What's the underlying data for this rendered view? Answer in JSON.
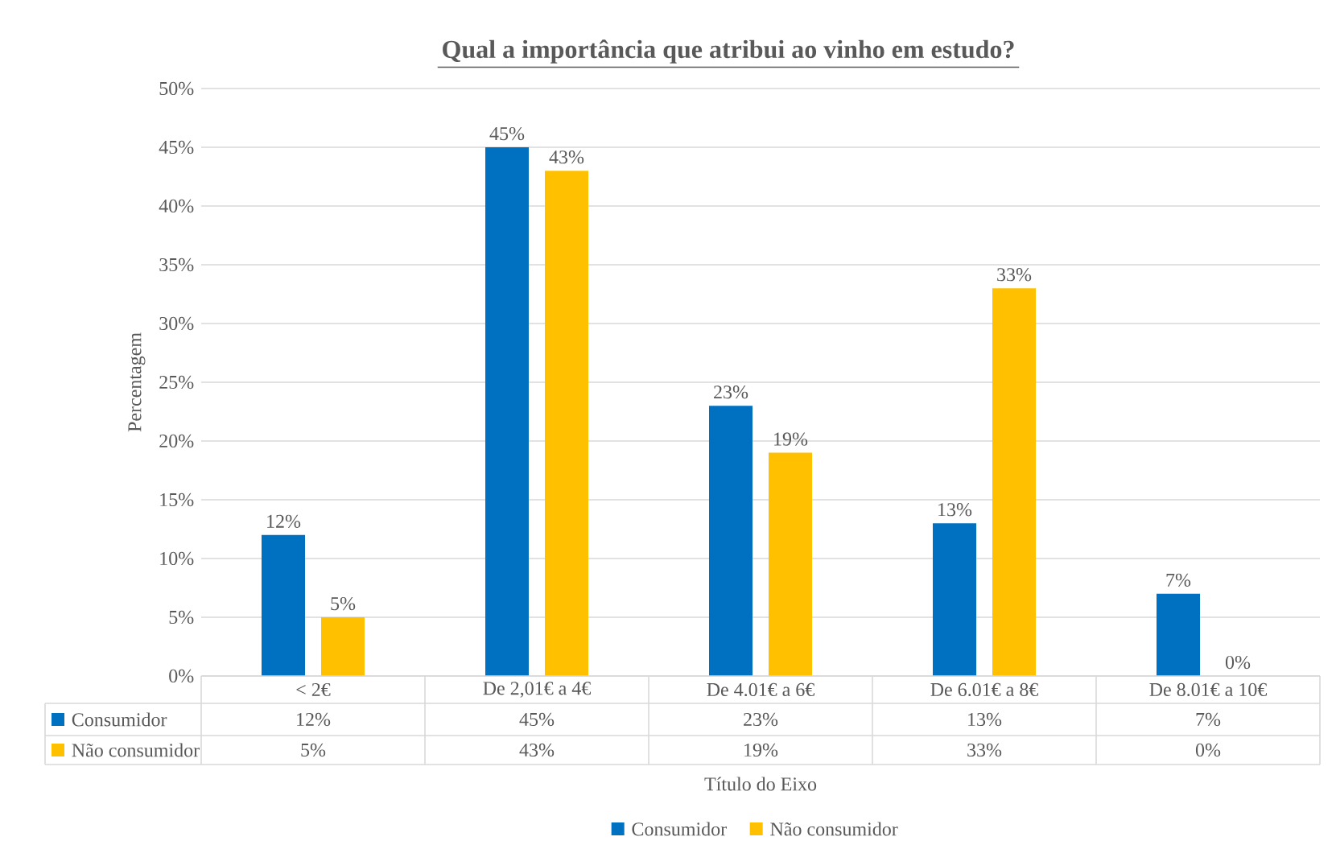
{
  "chart_data": {
    "type": "bar",
    "title": "Qual a importância que atribui ao vinho em estudo?",
    "xlabel": "Título do Eixo",
    "ylabel": "Percentagem",
    "categories": [
      "< 2€",
      "De 2,01€ a 4€",
      "De 4.01€ a 6€",
      "De 6.01€ a 8€",
      "De 8.01€ a 10€"
    ],
    "series": [
      {
        "name": "Consumidor",
        "color": "#0070c0",
        "values": [
          12,
          45,
          23,
          13,
          7
        ],
        "value_labels": [
          "12%",
          "45%",
          "23%",
          "13%",
          "7%"
        ]
      },
      {
        "name": "Não consumidor",
        "color": "#ffc000",
        "values": [
          5,
          43,
          19,
          33,
          0
        ],
        "value_labels": [
          "5%",
          "43%",
          "19%",
          "33%",
          "0%"
        ]
      }
    ],
    "ylim": [
      0,
      50
    ],
    "yticks": [
      {
        "value": 0,
        "label": "0%"
      },
      {
        "value": 5,
        "label": "5%"
      },
      {
        "value": 10,
        "label": "10%"
      },
      {
        "value": 15,
        "label": "15%"
      },
      {
        "value": 20,
        "label": "20%"
      },
      {
        "value": 25,
        "label": "25%"
      },
      {
        "value": 30,
        "label": "30%"
      },
      {
        "value": 35,
        "label": "35%"
      },
      {
        "value": 40,
        "label": "40%"
      },
      {
        "value": 45,
        "label": "45%"
      },
      {
        "value": 50,
        "label": "50%"
      }
    ],
    "grid": "y",
    "legend": "bottom"
  }
}
